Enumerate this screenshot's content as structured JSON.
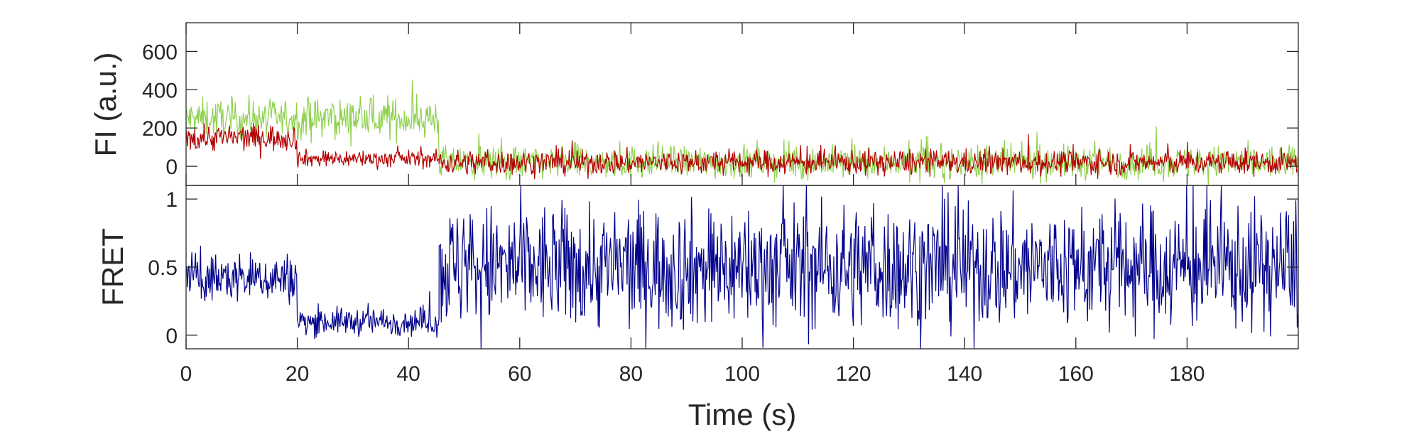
{
  "chart_data": [
    {
      "type": "line",
      "title": "",
      "xlabel": "",
      "ylabel": "FI (a.u.)",
      "xlim": [
        0,
        200
      ],
      "ylim": [
        -100,
        750
      ],
      "yticks": [
        0,
        200,
        400,
        600
      ],
      "grid": false,
      "series": [
        {
          "color": "#8fd14f",
          "segments": [
            {
              "x": [
                0,
                45.5
              ],
              "mean": 250,
              "noise": 100
            },
            {
              "x": [
                45.5,
                200
              ],
              "mean": 20,
              "noise": 85
            }
          ],
          "key_points": [
            [
              0,
              300
            ],
            [
              5,
              240
            ],
            [
              10,
              220
            ],
            [
              15,
              220
            ],
            [
              20,
              270
            ],
            [
              25,
              330
            ],
            [
              30,
              360
            ],
            [
              35,
              330
            ],
            [
              40,
              290
            ],
            [
              45,
              280
            ],
            [
              46,
              40
            ],
            [
              60,
              20
            ],
            [
              80,
              20
            ],
            [
              100,
              20
            ],
            [
              130,
              25
            ],
            [
              160,
              20
            ],
            [
              200,
              20
            ]
          ]
        },
        {
          "color": "#b30000",
          "segments": [
            {
              "x": [
                0,
                20
              ],
              "mean": 150,
              "noise": 70
            },
            {
              "x": [
                20,
                45.5
              ],
              "mean": 40,
              "noise": 45
            },
            {
              "x": [
                45.5,
                200
              ],
              "mean": 20,
              "noise": 65
            }
          ],
          "key_points": [
            [
              0,
              170
            ],
            [
              5,
              150
            ],
            [
              10,
              140
            ],
            [
              15,
              140
            ],
            [
              20,
              120
            ],
            [
              21,
              50
            ],
            [
              30,
              40
            ],
            [
              40,
              40
            ],
            [
              46,
              30
            ],
            [
              80,
              25
            ],
            [
              120,
              20
            ],
            [
              160,
              20
            ],
            [
              200,
              20
            ]
          ]
        }
      ]
    },
    {
      "type": "line",
      "title": "",
      "xlabel": "Time (s)",
      "ylabel": "FRET",
      "xlim": [
        0,
        200
      ],
      "ylim": [
        -0.1,
        1.1
      ],
      "yticks": [
        0,
        0.5,
        1
      ],
      "ytick_labels": [
        "0",
        "0.5",
        "1"
      ],
      "xticks": [
        0,
        20,
        40,
        60,
        80,
        100,
        120,
        140,
        160,
        180
      ],
      "xtick_labels": [
        "0",
        "20",
        "40",
        "60",
        "80",
        "100",
        "120",
        "140",
        "160",
        "180"
      ],
      "grid": false,
      "series": [
        {
          "color": "#00008b",
          "segments": [
            {
              "x": [
                0,
                20
              ],
              "mean": 0.42,
              "noise": 0.18
            },
            {
              "x": [
                20,
                45.5
              ],
              "mean": 0.1,
              "noise": 0.1
            },
            {
              "x": [
                45.5,
                200
              ],
              "mean": 0.5,
              "noise": 0.45
            }
          ],
          "key_points": [
            [
              0,
              0.4
            ],
            [
              5,
              0.45
            ],
            [
              10,
              0.4
            ],
            [
              15,
              0.4
            ],
            [
              20,
              0.35
            ],
            [
              22,
              0.1
            ],
            [
              30,
              0.08
            ],
            [
              40,
              0.1
            ],
            [
              45,
              0.25
            ],
            [
              46,
              0.6
            ],
            [
              60,
              0.5
            ],
            [
              100,
              0.5
            ],
            [
              140,
              0.5
            ],
            [
              200,
              0.5
            ]
          ]
        }
      ]
    }
  ]
}
